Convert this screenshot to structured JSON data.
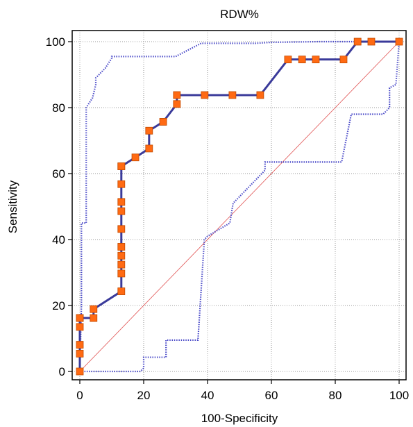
{
  "chart_data": {
    "type": "line",
    "title": "RDW%",
    "xlabel": "100-Specificity",
    "ylabel": "Sensitivity",
    "xlim": [
      0,
      100
    ],
    "ylim": [
      0,
      100
    ],
    "xticks": [
      0,
      20,
      40,
      60,
      80,
      100
    ],
    "yticks": [
      0,
      20,
      40,
      60,
      80,
      100
    ],
    "grid": true,
    "colors": {
      "roc": "#3a3a9a",
      "marker_fill": "#ff6a13",
      "marker_stroke": "#c04a00",
      "ci": "#4a4ac8",
      "diagonal": "#e05050",
      "grid": "#9a9a9a"
    },
    "series": [
      {
        "role": "roc",
        "x": [
          0,
          0,
          0,
          0,
          0,
          0,
          4.3,
          4.3,
          13,
          13,
          13,
          13,
          13,
          13,
          13,
          13,
          13,
          13,
          13,
          17.4,
          21.7,
          21.7,
          26.1,
          30.4,
          30.4,
          39.1,
          47.8,
          56.5,
          65.2,
          69.6,
          73.9,
          82.6,
          87,
          91.3,
          100
        ],
        "y": [
          0,
          5.4,
          8.1,
          13.5,
          16.2,
          16.2,
          16.2,
          18.9,
          24.3,
          29.7,
          32.4,
          35.1,
          37.8,
          43.2,
          48.6,
          51.4,
          56.8,
          62.2,
          62.2,
          64.9,
          67.6,
          73,
          75.7,
          81.1,
          83.8,
          83.8,
          83.8,
          83.8,
          94.6,
          94.6,
          94.6,
          94.6,
          100,
          100,
          100
        ],
        "markers": true
      },
      {
        "role": "ci-upper",
        "x": [
          0,
          0.5,
          0.5,
          2,
          2,
          4,
          5,
          5,
          8,
          10,
          10,
          30,
          38,
          55,
          60,
          75,
          85,
          87,
          90,
          100
        ],
        "y": [
          0,
          20,
          45,
          45,
          80,
          83,
          87,
          89,
          92,
          95,
          95.5,
          95.5,
          99.5,
          99.5,
          99.8,
          100,
          100,
          100,
          100,
          100
        ]
      },
      {
        "role": "ci-lower",
        "x": [
          0,
          19,
          20,
          20,
          27,
          27,
          37,
          39,
          40,
          47,
          48,
          50,
          55,
          58,
          58,
          82,
          85,
          95,
          97,
          97,
          99,
          100
        ],
        "y": [
          0,
          0,
          1,
          4.3,
          4.3,
          9.5,
          9.5,
          40,
          41,
          45,
          51,
          53,
          58,
          61,
          63.5,
          63.5,
          78,
          78,
          80,
          86,
          87,
          100
        ]
      }
    ]
  }
}
